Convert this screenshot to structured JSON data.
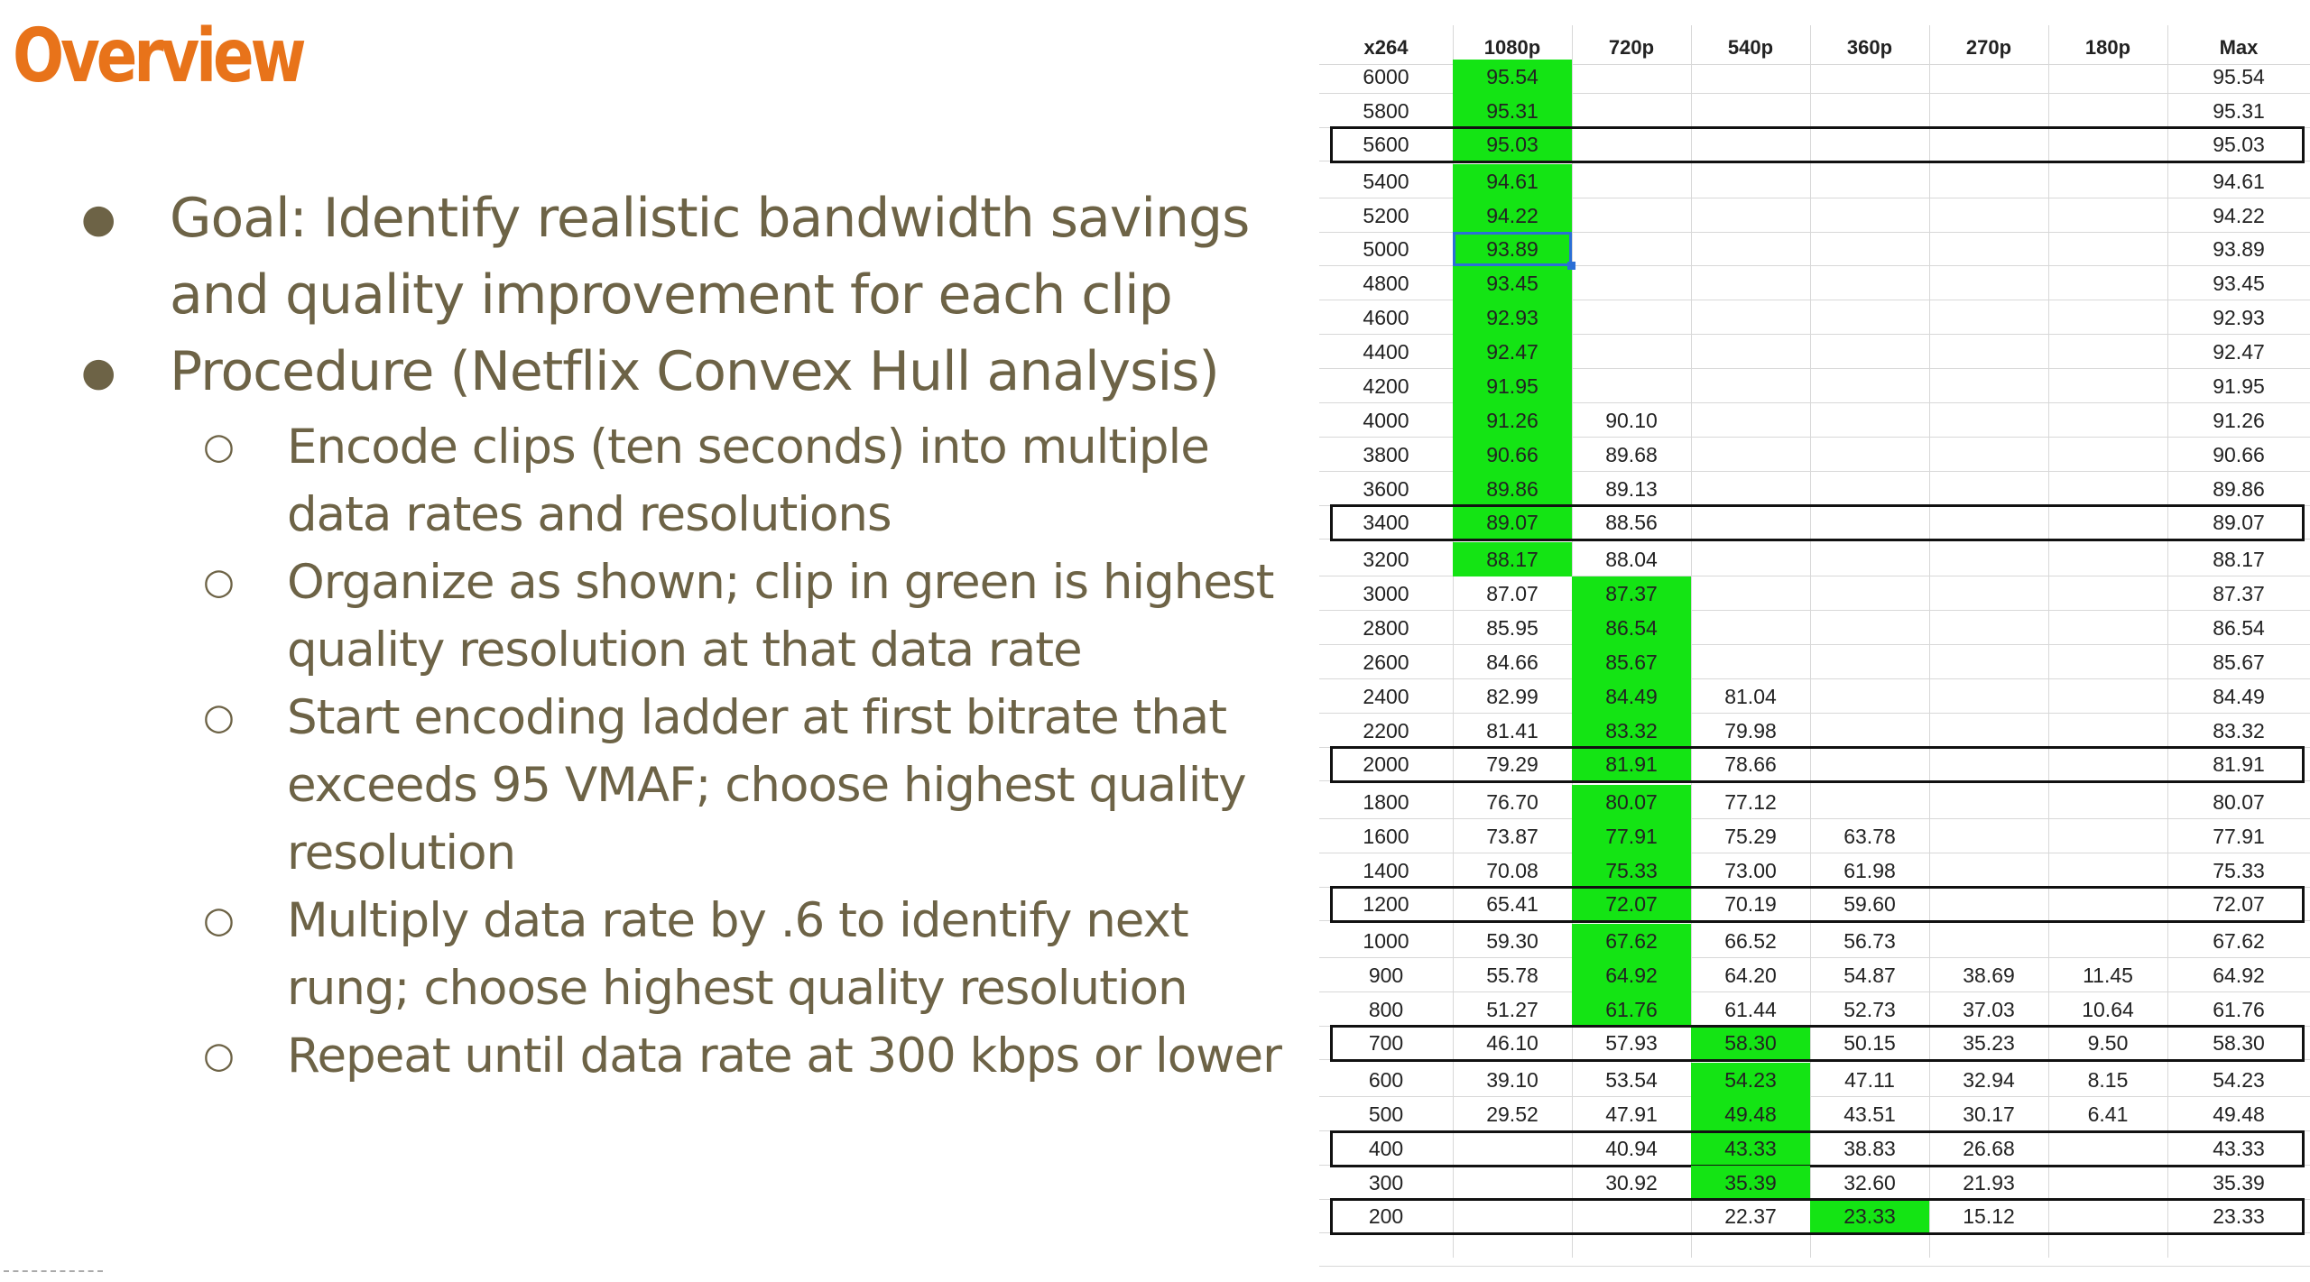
{
  "slide": {
    "title": "Overview",
    "bullets": [
      {
        "level": 1,
        "text": "Goal: Identify realistic bandwidth savings and quality improvement for each clip"
      },
      {
        "level": 1,
        "text": "Procedure (Netflix Convex Hull analysis)"
      },
      {
        "level": 2,
        "text": "Encode clips (ten seconds) into multiple data rates and resolutions"
      },
      {
        "level": 2,
        "text": "Organize as shown; clip in green is highest quality resolution at that data rate"
      },
      {
        "level": 2,
        "text": "Start encoding ladder at first bitrate that exceeds 95 VMAF; choose highest quality resolution"
      },
      {
        "level": 2,
        "text": "Multiply data rate by .6 to identify next rung; choose highest quality resolution"
      },
      {
        "level": 2,
        "text": "Repeat until data rate at 300 kbps or lower"
      }
    ],
    "bullet_markers": {
      "level1": "●",
      "level2": "○"
    }
  },
  "table": {
    "headers": [
      "x264",
      "1080p",
      "720p",
      "540p",
      "360p",
      "270p",
      "180p",
      "Max"
    ],
    "rows": [
      {
        "rate": "6000",
        "vals": [
          "95.54",
          "",
          "",
          "",
          "",
          ""
        ],
        "max": "95.54",
        "green": 1,
        "boxed": false
      },
      {
        "rate": "5800",
        "vals": [
          "95.31",
          "",
          "",
          "",
          "",
          ""
        ],
        "max": "95.31",
        "green": 1,
        "boxed": false
      },
      {
        "rate": "5600",
        "vals": [
          "95.03",
          "",
          "",
          "",
          "",
          ""
        ],
        "max": "95.03",
        "green": 1,
        "boxed": true
      },
      {
        "rate": "5400",
        "vals": [
          "94.61",
          "",
          "",
          "",
          "",
          ""
        ],
        "max": "94.61",
        "green": 1,
        "boxed": false
      },
      {
        "rate": "5200",
        "vals": [
          "94.22",
          "",
          "",
          "",
          "",
          ""
        ],
        "max": "94.22",
        "green": 1,
        "boxed": false
      },
      {
        "rate": "5000",
        "vals": [
          "93.89",
          "",
          "",
          "",
          "",
          ""
        ],
        "max": "93.89",
        "green": 1,
        "boxed": false
      },
      {
        "rate": "4800",
        "vals": [
          "93.45",
          "",
          "",
          "",
          "",
          ""
        ],
        "max": "93.45",
        "green": 1,
        "boxed": false
      },
      {
        "rate": "4600",
        "vals": [
          "92.93",
          "",
          "",
          "",
          "",
          ""
        ],
        "max": "92.93",
        "green": 1,
        "boxed": false
      },
      {
        "rate": "4400",
        "vals": [
          "92.47",
          "",
          "",
          "",
          "",
          ""
        ],
        "max": "92.47",
        "green": 1,
        "boxed": false
      },
      {
        "rate": "4200",
        "vals": [
          "91.95",
          "",
          "",
          "",
          "",
          ""
        ],
        "max": "91.95",
        "green": 1,
        "boxed": false
      },
      {
        "rate": "4000",
        "vals": [
          "91.26",
          "90.10",
          "",
          "",
          "",
          ""
        ],
        "max": "91.26",
        "green": 1,
        "boxed": false
      },
      {
        "rate": "3800",
        "vals": [
          "90.66",
          "89.68",
          "",
          "",
          "",
          ""
        ],
        "max": "90.66",
        "green": 1,
        "boxed": false
      },
      {
        "rate": "3600",
        "vals": [
          "89.86",
          "89.13",
          "",
          "",
          "",
          ""
        ],
        "max": "89.86",
        "green": 1,
        "boxed": false
      },
      {
        "rate": "3400",
        "vals": [
          "89.07",
          "88.56",
          "",
          "",
          "",
          ""
        ],
        "max": "89.07",
        "green": 1,
        "boxed": true
      },
      {
        "rate": "3200",
        "vals": [
          "88.17",
          "88.04",
          "",
          "",
          "",
          ""
        ],
        "max": "88.17",
        "green": 1,
        "boxed": false
      },
      {
        "rate": "3000",
        "vals": [
          "87.07",
          "87.37",
          "",
          "",
          "",
          ""
        ],
        "max": "87.37",
        "green": 2,
        "boxed": false
      },
      {
        "rate": "2800",
        "vals": [
          "85.95",
          "86.54",
          "",
          "",
          "",
          ""
        ],
        "max": "86.54",
        "green": 2,
        "boxed": false
      },
      {
        "rate": "2600",
        "vals": [
          "84.66",
          "85.67",
          "",
          "",
          "",
          ""
        ],
        "max": "85.67",
        "green": 2,
        "boxed": false
      },
      {
        "rate": "2400",
        "vals": [
          "82.99",
          "84.49",
          "81.04",
          "",
          "",
          ""
        ],
        "max": "84.49",
        "green": 2,
        "boxed": false
      },
      {
        "rate": "2200",
        "vals": [
          "81.41",
          "83.32",
          "79.98",
          "",
          "",
          ""
        ],
        "max": "83.32",
        "green": 2,
        "boxed": false
      },
      {
        "rate": "2000",
        "vals": [
          "79.29",
          "81.91",
          "78.66",
          "",
          "",
          ""
        ],
        "max": "81.91",
        "green": 2,
        "boxed": true
      },
      {
        "rate": "1800",
        "vals": [
          "76.70",
          "80.07",
          "77.12",
          "",
          "",
          ""
        ],
        "max": "80.07",
        "green": 2,
        "boxed": false
      },
      {
        "rate": "1600",
        "vals": [
          "73.87",
          "77.91",
          "75.29",
          "63.78",
          "",
          ""
        ],
        "max": "77.91",
        "green": 2,
        "boxed": false
      },
      {
        "rate": "1400",
        "vals": [
          "70.08",
          "75.33",
          "73.00",
          "61.98",
          "",
          ""
        ],
        "max": "75.33",
        "green": 2,
        "boxed": false
      },
      {
        "rate": "1200",
        "vals": [
          "65.41",
          "72.07",
          "70.19",
          "59.60",
          "",
          ""
        ],
        "max": "72.07",
        "green": 2,
        "boxed": true
      },
      {
        "rate": "1000",
        "vals": [
          "59.30",
          "67.62",
          "66.52",
          "56.73",
          "",
          ""
        ],
        "max": "67.62",
        "green": 2,
        "boxed": false
      },
      {
        "rate": "900",
        "vals": [
          "55.78",
          "64.92",
          "64.20",
          "54.87",
          "38.69",
          "11.45"
        ],
        "max": "64.92",
        "green": 2,
        "boxed": false
      },
      {
        "rate": "800",
        "vals": [
          "51.27",
          "61.76",
          "61.44",
          "52.73",
          "37.03",
          "10.64"
        ],
        "max": "61.76",
        "green": 2,
        "boxed": false
      },
      {
        "rate": "700",
        "vals": [
          "46.10",
          "57.93",
          "58.30",
          "50.15",
          "35.23",
          "9.50"
        ],
        "max": "58.30",
        "green": 3,
        "boxed": true
      },
      {
        "rate": "600",
        "vals": [
          "39.10",
          "53.54",
          "54.23",
          "47.11",
          "32.94",
          "8.15"
        ],
        "max": "54.23",
        "green": 3,
        "boxed": false
      },
      {
        "rate": "500",
        "vals": [
          "29.52",
          "47.91",
          "49.48",
          "43.51",
          "30.17",
          "6.41"
        ],
        "max": "49.48",
        "green": 3,
        "boxed": false
      },
      {
        "rate": "400",
        "vals": [
          "",
          "40.94",
          "43.33",
          "38.83",
          "26.68",
          ""
        ],
        "max": "43.33",
        "green": 3,
        "boxed": true
      },
      {
        "rate": "300",
        "vals": [
          "",
          "30.92",
          "35.39",
          "32.60",
          "21.93",
          ""
        ],
        "max": "35.39",
        "green": 3,
        "boxed": false
      },
      {
        "rate": "200",
        "vals": [
          "",
          "",
          "22.37",
          "23.33",
          "15.12",
          ""
        ],
        "max": "23.33",
        "green": 4,
        "boxed": true
      }
    ],
    "selected": {
      "row": 5,
      "col": 1
    },
    "colors": {
      "highlight": "#14e414",
      "selection": "#2b6fd6",
      "title": "#e8731a",
      "body_text": "#6d6346"
    }
  }
}
